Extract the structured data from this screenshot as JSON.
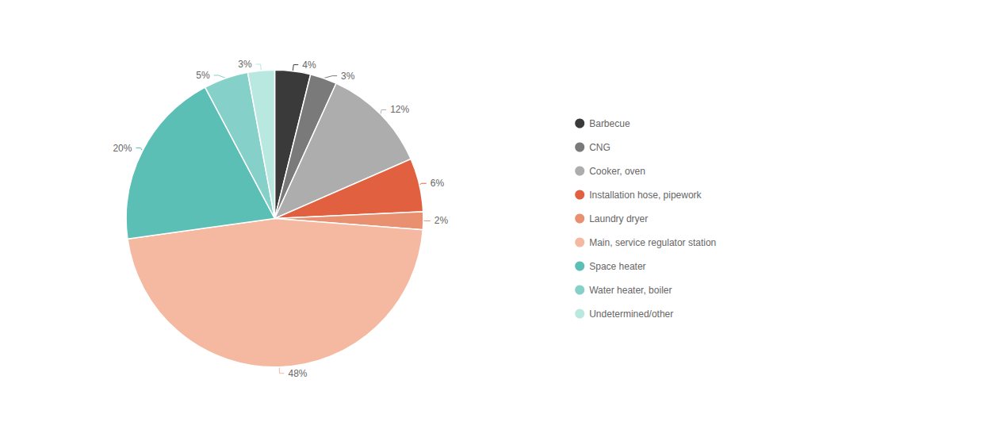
{
  "chart_data": {
    "type": "pie",
    "categories": [
      "Barbecue",
      "CNG",
      "Cooker, oven",
      "Installation hose, pipework",
      "Laundry dryer",
      "Main, service regulator station",
      "Space heater",
      "Water heater, boiler",
      "Undetermined/other"
    ],
    "values": [
      4,
      3,
      12,
      6,
      2,
      48,
      20,
      5,
      3
    ],
    "value_labels": [
      "4%",
      "3%",
      "12%",
      "6%",
      "2%",
      "48%",
      "20%",
      "5%",
      "3%"
    ],
    "colors": [
      "#3a3a3a",
      "#7a7a7a",
      "#adadad",
      "#e06040",
      "#e89070",
      "#f5b8a0",
      "#5bbfb5",
      "#85d0c8",
      "#b8e8e0"
    ],
    "data_labels": true,
    "legend": "right"
  }
}
